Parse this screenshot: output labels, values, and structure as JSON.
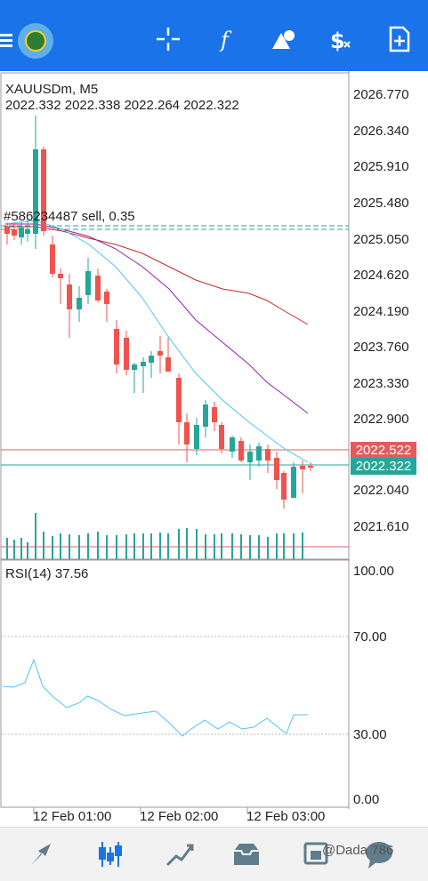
{
  "app": {
    "symbol_timeframe": "XAUUSDm, M5",
    "ohlc": "2022.332 2022.338 2022.264 2022.322",
    "order_label": "#586234487 sell, 0.35",
    "indicator_label": "RSI(14) 37.56"
  },
  "toolbar": {
    "icons": [
      "menu-icon",
      "app-logo",
      "crosshair-icon",
      "function-icon",
      "shapes-icon",
      "dollar-icon",
      "new-order-icon"
    ]
  },
  "price_axis": [
    "2026.770",
    "2026.340",
    "2025.910",
    "2025.480",
    "2025.050",
    "2024.620",
    "2024.190",
    "2023.760",
    "2023.330",
    "2022.900",
    "2022.040",
    "2021.610"
  ],
  "price_tags": {
    "ask": "2022.522",
    "bid": "2022.322",
    "ask_color": "#e25c5c",
    "bid_color": "#26a69a"
  },
  "rsi_axis": [
    "100.00",
    "70.00",
    "30.00",
    "0.00"
  ],
  "time_axis": [
    "12 Feb 01:00",
    "12 Feb 02:00",
    "12 Feb 03:00"
  ],
  "bottom_nav": [
    "quotes-icon",
    "chart-icon",
    "trade-icon",
    "history-icon",
    "messages-icon"
  ],
  "watermark": "@Dada 786",
  "colors": {
    "bull": "#26a69a",
    "bear": "#ef5350",
    "accent": "#1a73e8"
  }
}
